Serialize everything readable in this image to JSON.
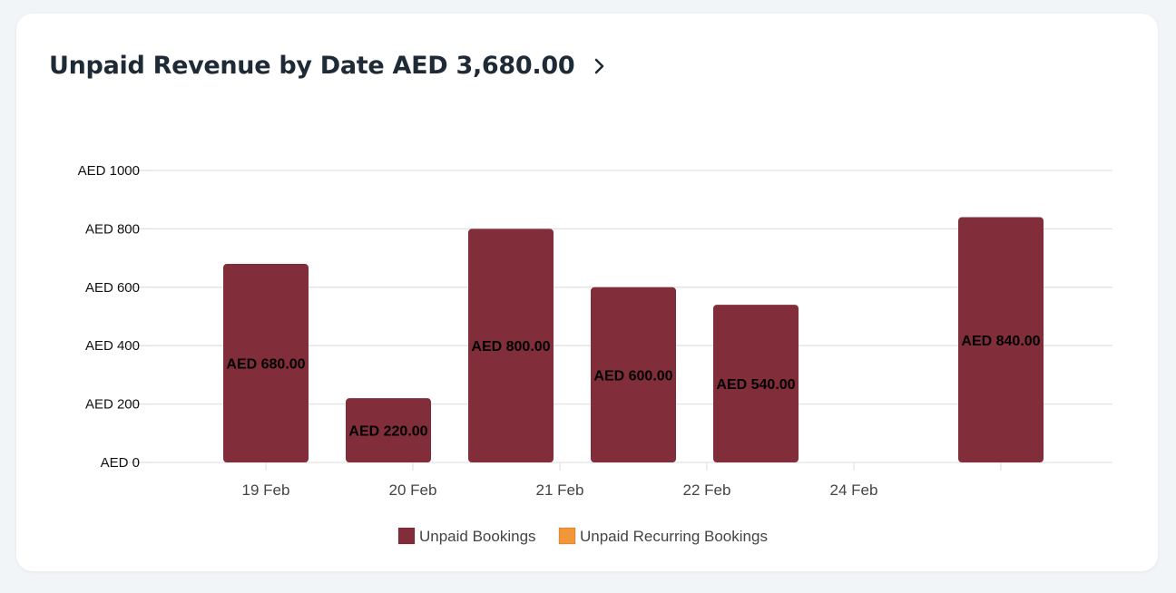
{
  "header": {
    "title": "Unpaid Revenue by Date AED 3,680.00",
    "chevron_icon": "chevron-right-icon"
  },
  "colors": {
    "unpaid_bookings": "#812d3a",
    "unpaid_recurring_bookings": "#f29637",
    "grid": "#e3e3e3",
    "title": "#1f2a37"
  },
  "chart_data": {
    "type": "bar",
    "title": "Unpaid Revenue by Date AED 3,680.00",
    "xlabel": "",
    "ylabel": "",
    "ylim": [
      0,
      1000
    ],
    "yticks": [
      0,
      200,
      400,
      600,
      800,
      1000
    ],
    "ytick_labels": [
      "AED 0",
      "AED 200",
      "AED 400",
      "AED 600",
      "AED 800",
      "AED 1000"
    ],
    "categories": [
      "19 Feb",
      "20 Feb",
      "21 Feb",
      "22 Feb",
      "24 Feb",
      ""
    ],
    "grid": true,
    "legend_position": "bottom",
    "series": [
      {
        "name": "Unpaid Bookings",
        "color": "#812d3a",
        "values": [
          680,
          220,
          800,
          600,
          540,
          840
        ],
        "labels": [
          "AED 680.00",
          "AED 220.00",
          "AED 800.00",
          "AED 600.00",
          "AED 540.00",
          "AED 840.00"
        ]
      },
      {
        "name": "Unpaid Recurring Bookings",
        "color": "#f29637",
        "values": [
          0,
          0,
          0,
          0,
          0,
          0
        ],
        "labels": []
      }
    ]
  }
}
